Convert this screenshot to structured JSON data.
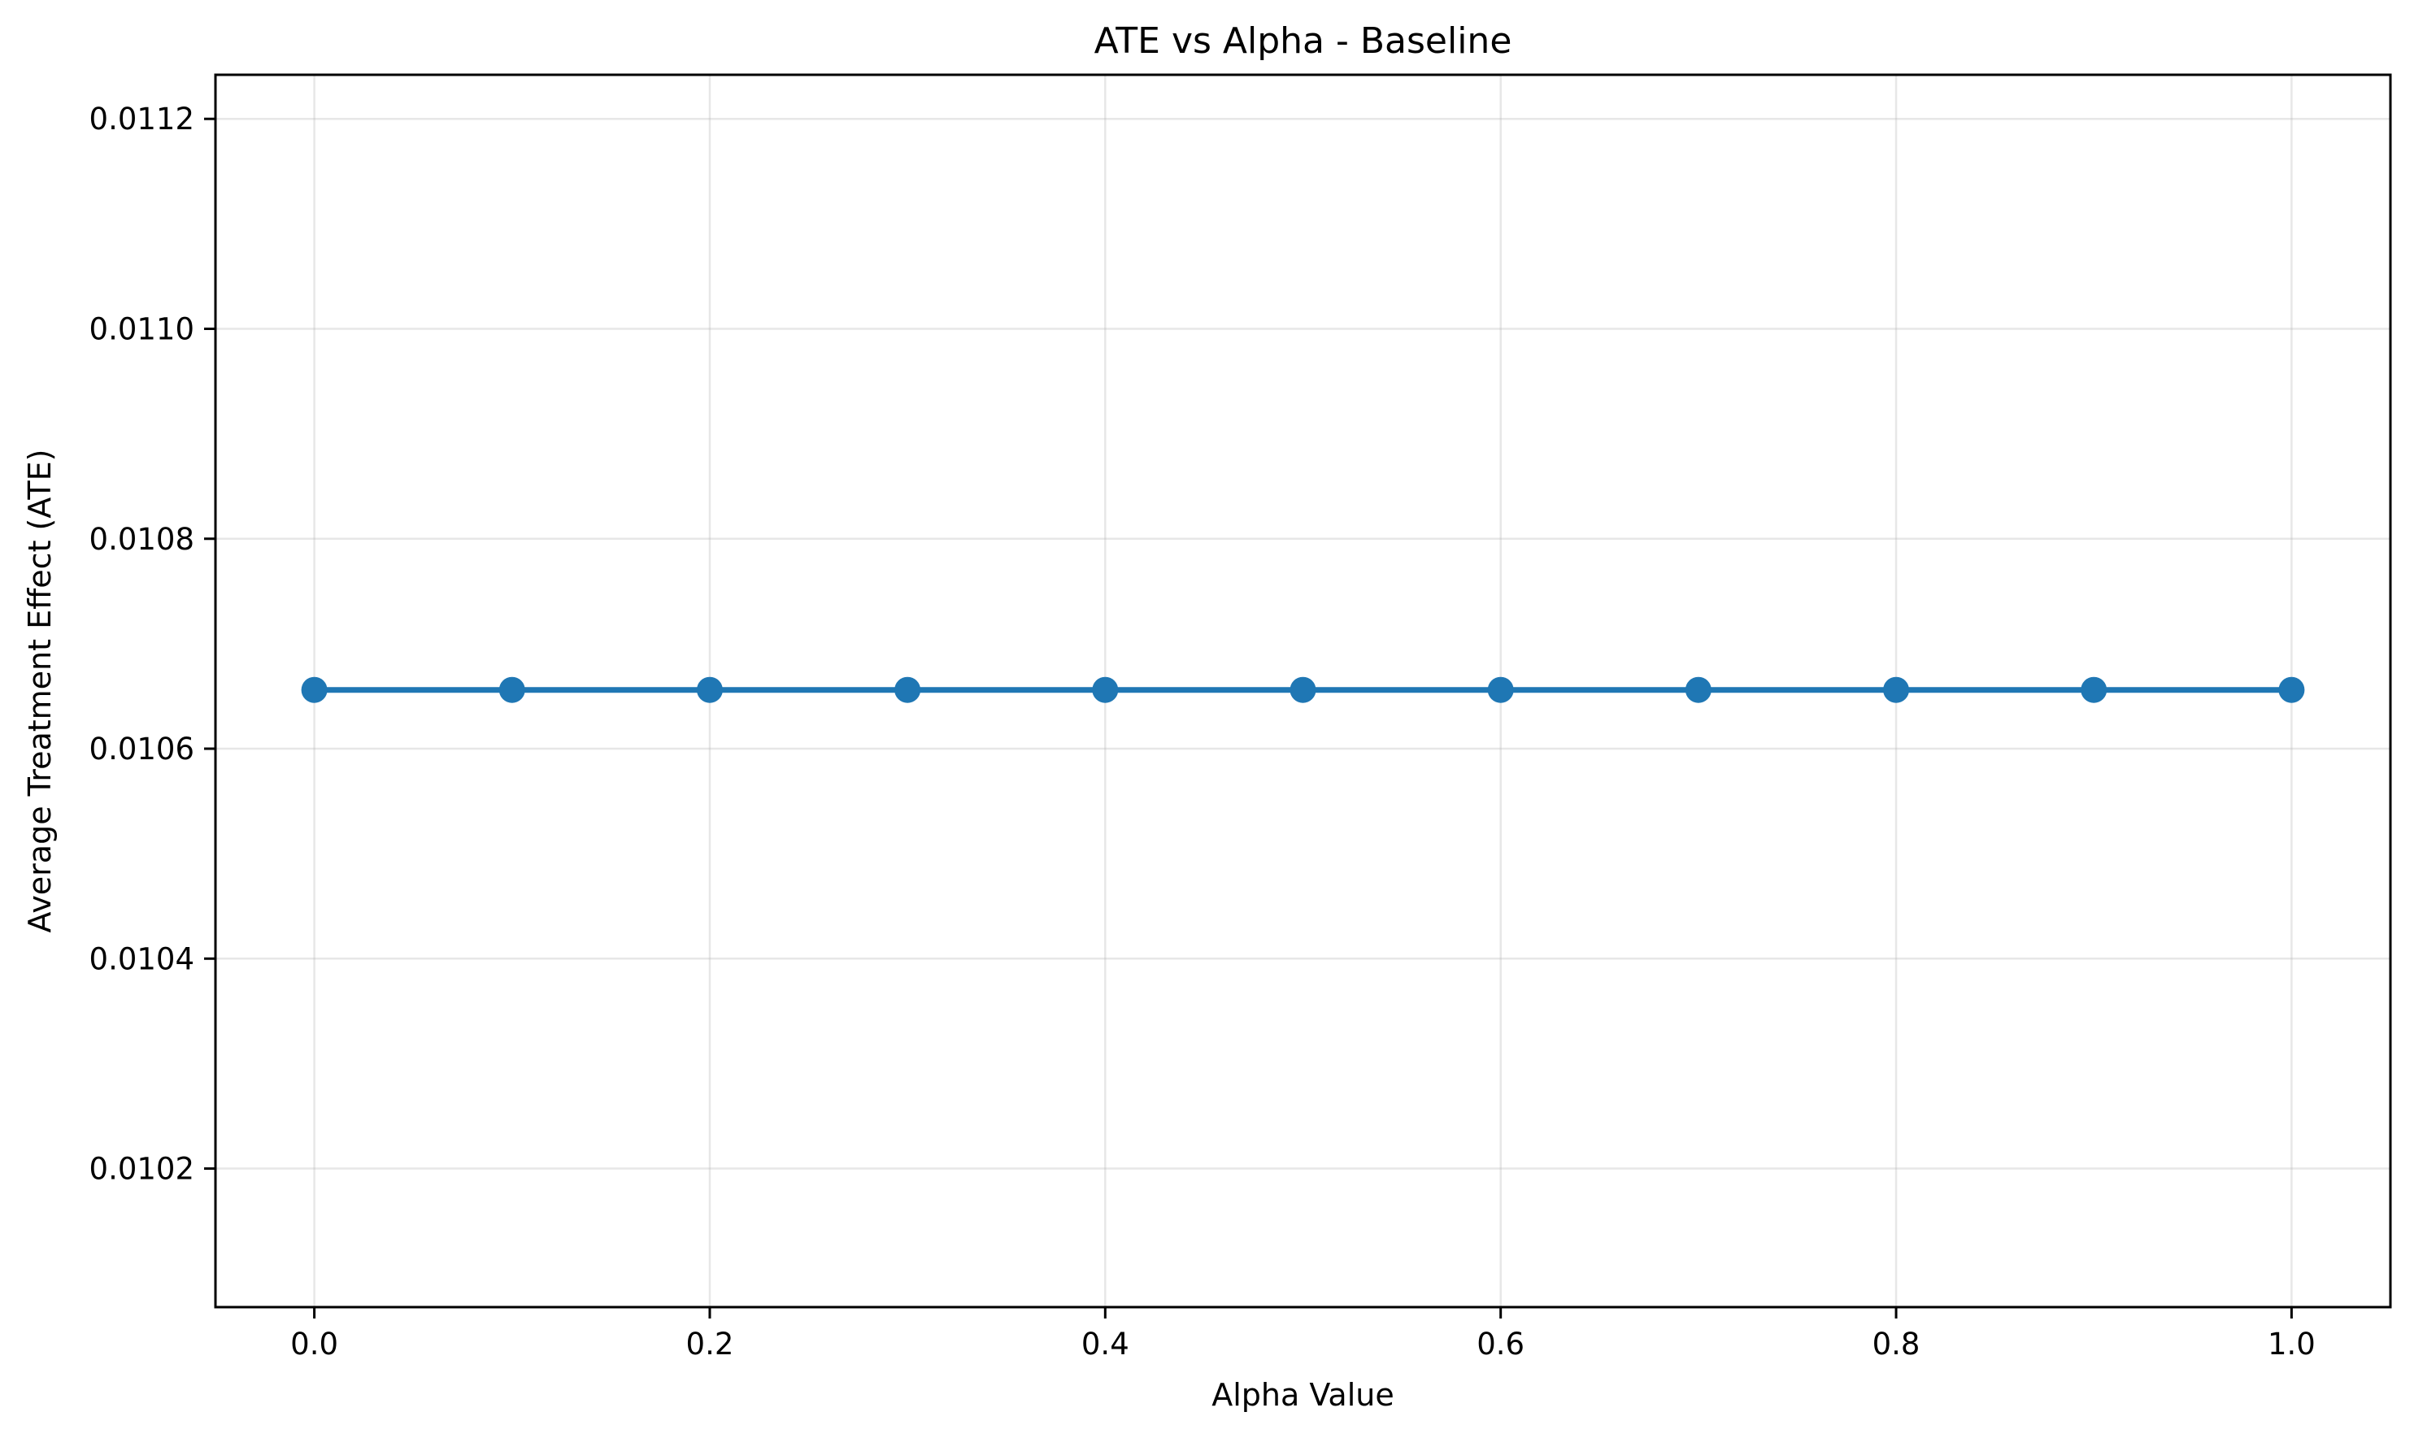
{
  "chart_data": {
    "type": "line",
    "title": "ATE vs Alpha - Baseline",
    "xlabel": "Alpha Value",
    "ylabel": "Average Treatment Effect (ATE)",
    "xlim": [
      -0.05,
      1.05
    ],
    "ylim": [
      0.010068,
      0.011242
    ],
    "xticks": [
      0.0,
      0.2,
      0.4,
      0.6,
      0.8,
      1.0
    ],
    "xtick_labels": [
      "0.0",
      "0.2",
      "0.4",
      "0.6",
      "0.8",
      "1.0"
    ],
    "yticks": [
      0.0102,
      0.0104,
      0.0106,
      0.0108,
      0.011,
      0.0112
    ],
    "ytick_labels": [
      "0.0102",
      "0.0104",
      "0.0106",
      "0.0108",
      "0.0110",
      "0.0112"
    ],
    "grid": true,
    "legend": "none",
    "series": [
      {
        "color": "#1f77b4",
        "marker": "circle",
        "x": [
          0.0,
          0.1,
          0.2,
          0.3,
          0.4,
          0.5,
          0.6,
          0.7,
          0.8,
          0.9,
          1.0
        ],
        "y": [
          0.010656,
          0.010656,
          0.010656,
          0.010656,
          0.010656,
          0.010656,
          0.010656,
          0.010656,
          0.010656,
          0.010656,
          0.010656
        ]
      }
    ]
  }
}
